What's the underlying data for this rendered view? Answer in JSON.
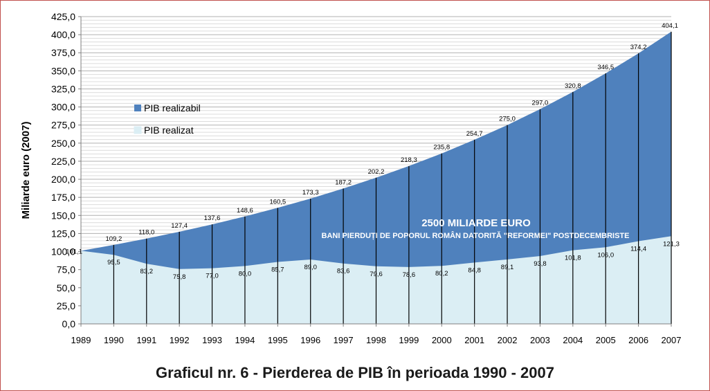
{
  "caption": "Graficul nr. 6 - Pierderea de PIB în perioada 1990 - 2007",
  "chart_data": {
    "type": "area",
    "title": "",
    "xlabel": "",
    "ylabel": "Miliarde euro (2007)",
    "x": [
      "1989",
      "1990",
      "1991",
      "1992",
      "1993",
      "1994",
      "1995",
      "1996",
      "1997",
      "1998",
      "1999",
      "2000",
      "2001",
      "2002",
      "2003",
      "2004",
      "2005",
      "2006",
      "2007"
    ],
    "ylim": [
      0,
      425
    ],
    "ytick_step": 25,
    "grid": true,
    "legend_position": "upper-left",
    "series": [
      {
        "name": "PIB realizabil",
        "color": "#4f81bd",
        "values": [
          101.1,
          109.2,
          118.0,
          127.4,
          137.6,
          148.6,
          160.5,
          173.3,
          187.2,
          202.2,
          218.3,
          235.8,
          254.7,
          275.0,
          297.0,
          320.8,
          346.5,
          374.2,
          404.1
        ],
        "labels": [
          "101,1",
          "109,2",
          "118,0",
          "127,4",
          "137,6",
          "148,6",
          "160,5",
          "173,3",
          "187,2",
          "202,2",
          "218,3",
          "235,8",
          "254,7",
          "275,0",
          "297,0",
          "320,8",
          "346,5",
          "374,2",
          "404,1"
        ]
      },
      {
        "name": "PIB realizat",
        "color": "#dbeef4",
        "values": [
          101.1,
          95.5,
          83.2,
          75.8,
          77.0,
          80.0,
          85.7,
          89.0,
          83.6,
          79.6,
          78.6,
          80.2,
          84.8,
          89.1,
          93.8,
          101.8,
          106.0,
          114.4,
          121.3
        ],
        "labels": [
          "",
          "95,5",
          "83,2",
          "75,8",
          "77,0",
          "80,0",
          "85,7",
          "89,0",
          "83,6",
          "79,6",
          "78,6",
          "80,2",
          "84,8",
          "89,1",
          "93,8",
          "101,8",
          "106,0",
          "114,4",
          "121,3"
        ]
      }
    ],
    "annotations": [
      "2500 MILIARDE EURO",
      "BANI PIERDUȚI DE POPORUL ROMÂN DATORITĂ \"REFORMEI\" POSTDECEMBRISTE"
    ]
  }
}
